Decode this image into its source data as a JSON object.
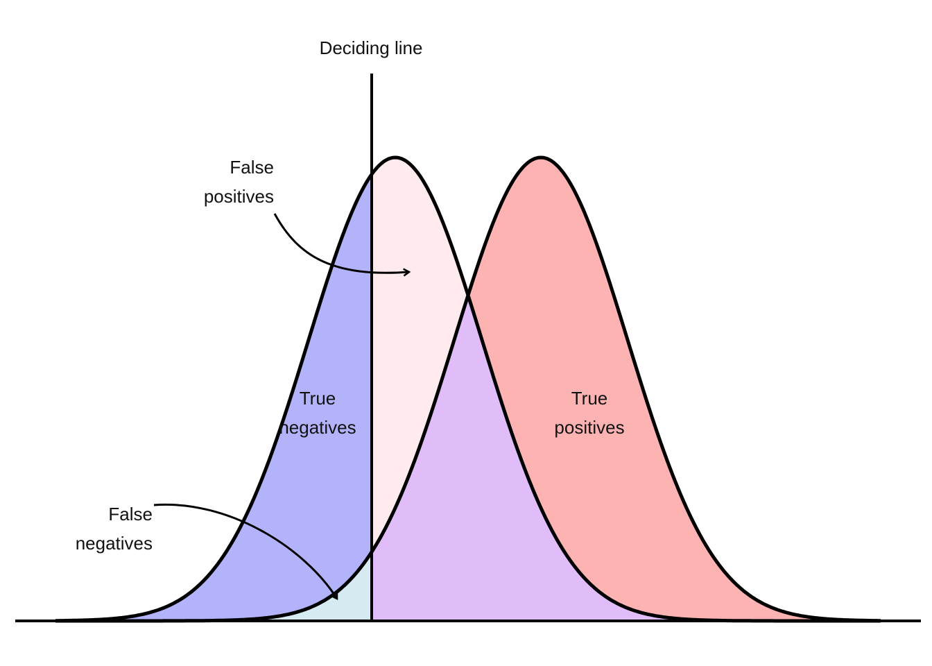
{
  "labels": {
    "deciding_line": "Deciding line",
    "false_positives": [
      "False",
      "positives"
    ],
    "true_negatives": [
      "True",
      "negatives"
    ],
    "true_positives": [
      "True",
      "positives"
    ],
    "false_negatives": [
      "False",
      "negatives"
    ]
  },
  "colors": {
    "true_negatives": "#b3b3fb",
    "false_positives": "#ffeaee",
    "true_positives": "#feb3b3",
    "false_negatives": "#d6eaf1",
    "overlap": "#e0bcf8",
    "outline": "#000000"
  }
}
